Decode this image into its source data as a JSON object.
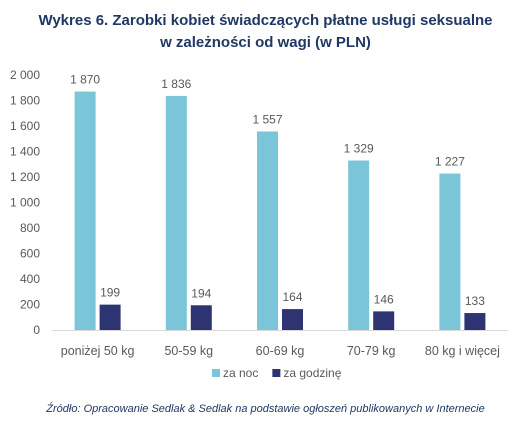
{
  "chart_data": {
    "type": "bar",
    "title_lines": [
      "Wykres 6. Zarobki kobiet świadczących płatne usługi seksualne",
      "w zależności od wagi (w PLN)"
    ],
    "categories": [
      "poniżej 50 kg",
      "50-59 kg",
      "60-69 kg",
      "70-79 kg",
      "80 kg i więcej"
    ],
    "series": [
      {
        "name": "za noc",
        "color": "#7ac5d8",
        "values": [
          1870,
          1836,
          1557,
          1329,
          1227
        ],
        "labels": [
          "1 870",
          "1 836",
          "1 557",
          "1 329",
          "1 227"
        ]
      },
      {
        "name": "za godzinę",
        "color": "#2e3472",
        "values": [
          199,
          194,
          164,
          146,
          133
        ],
        "labels": [
          "199",
          "194",
          "164",
          "146",
          "133"
        ]
      }
    ],
    "ylim": [
      0,
      2000
    ],
    "yticks": [
      0,
      200,
      400,
      600,
      800,
      1000,
      1200,
      1400,
      1600,
      1800,
      2000
    ],
    "ytick_labels": [
      "0",
      "200",
      "400",
      "600",
      "800",
      "1 000",
      "1 200",
      "1 400",
      "1 600",
      "1 800",
      "2 000"
    ],
    "grid": false,
    "legend_position": "bottom",
    "source": "Źródło: Opracowanie Sedlak & Sedlak na podstawie ogłoszeń publikowanych w Internecie"
  }
}
